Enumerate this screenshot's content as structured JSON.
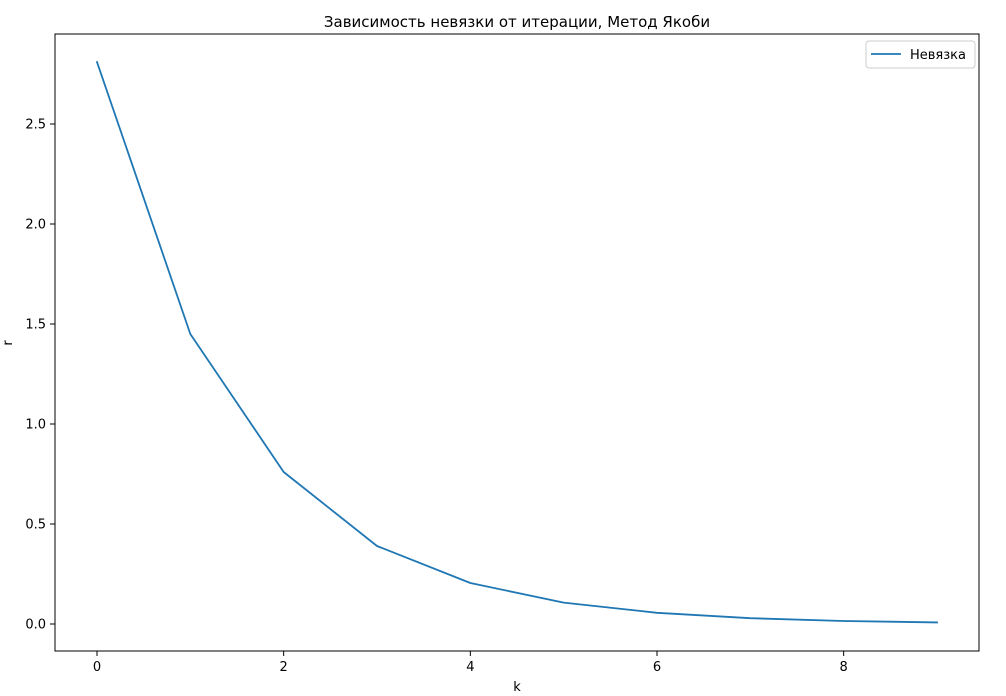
{
  "chart_data": {
    "type": "line",
    "title": "Зависимость невязки от итерации, Метод Якоби",
    "xlabel": "k",
    "ylabel": "r",
    "xlim": [
      -0.45,
      9.45
    ],
    "ylim": [
      -0.135,
      2.95
    ],
    "xticks": [
      0,
      2,
      4,
      6,
      8
    ],
    "xtick_labels": [
      "0",
      "2",
      "4",
      "6",
      "8"
    ],
    "yticks": [
      0.0,
      0.5,
      1.0,
      1.5,
      2.0,
      2.5
    ],
    "ytick_labels": [
      "0.0",
      "0.5",
      "1.0",
      "1.5",
      "2.0",
      "2.5"
    ],
    "grid": false,
    "legend_position": "top-right",
    "series": [
      {
        "name": "Невязка",
        "color": "#1f77b4",
        "x": [
          0,
          1,
          2,
          3,
          4,
          5,
          6,
          7,
          8,
          9
        ],
        "y": [
          2.81,
          1.45,
          0.76,
          0.39,
          0.205,
          0.107,
          0.056,
          0.029,
          0.015,
          0.008
        ]
      }
    ]
  }
}
